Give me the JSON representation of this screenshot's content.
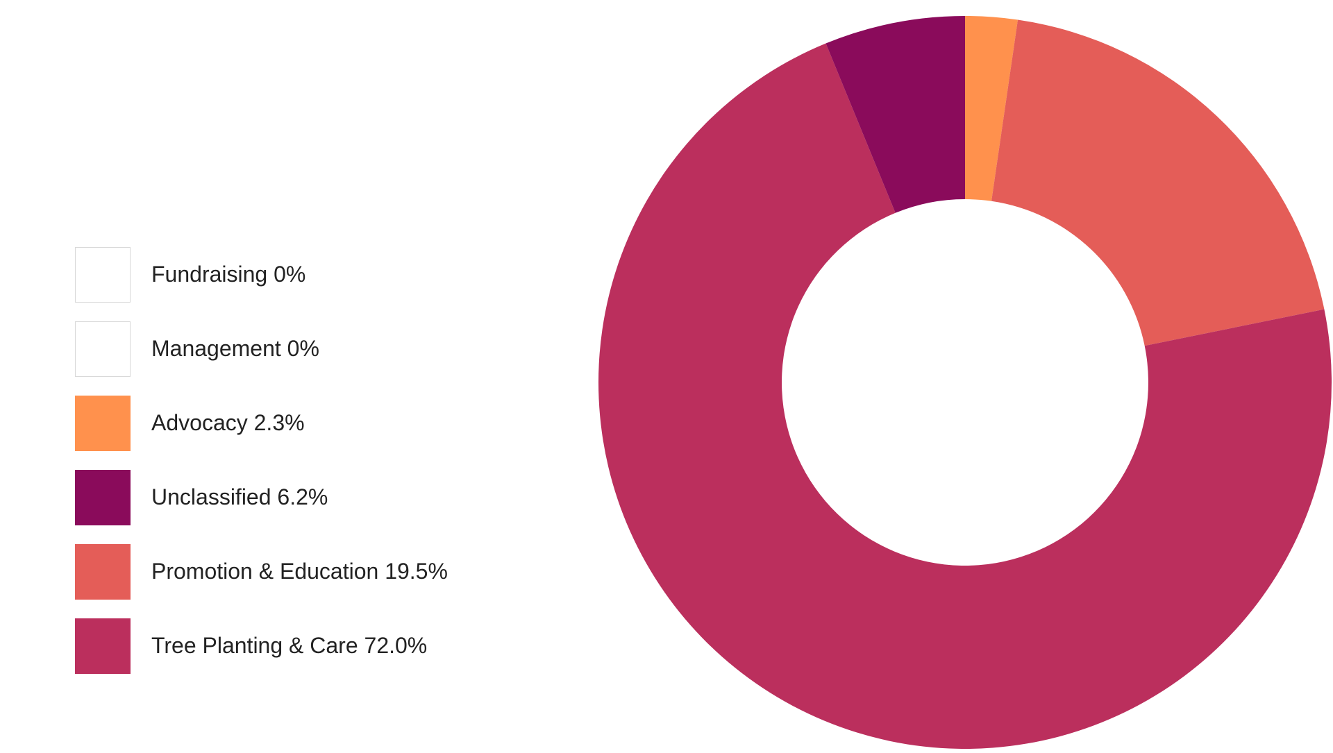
{
  "chart_data": {
    "type": "pie",
    "style": "donut",
    "categories": [
      "Fundraising",
      "Management",
      "Advocacy",
      "Unclassified",
      "Promotion & Education",
      "Tree Planting & Care"
    ],
    "values": [
      0,
      0,
      2.3,
      6.2,
      19.5,
      72.0
    ],
    "colors": [
      "#ffffff",
      "#ffffff",
      "#ff914d",
      "#8a0b5b",
      "#e45d58",
      "#bb2f5d"
    ],
    "legend_labels": [
      "Fundraising 0%",
      "Management 0%",
      "Advocacy 2.3%",
      "Unclassified 6.2%",
      "Promotion & Education 19.5%",
      "Tree Planting & Care 72.0%"
    ],
    "legend_position": "left",
    "title": ""
  }
}
